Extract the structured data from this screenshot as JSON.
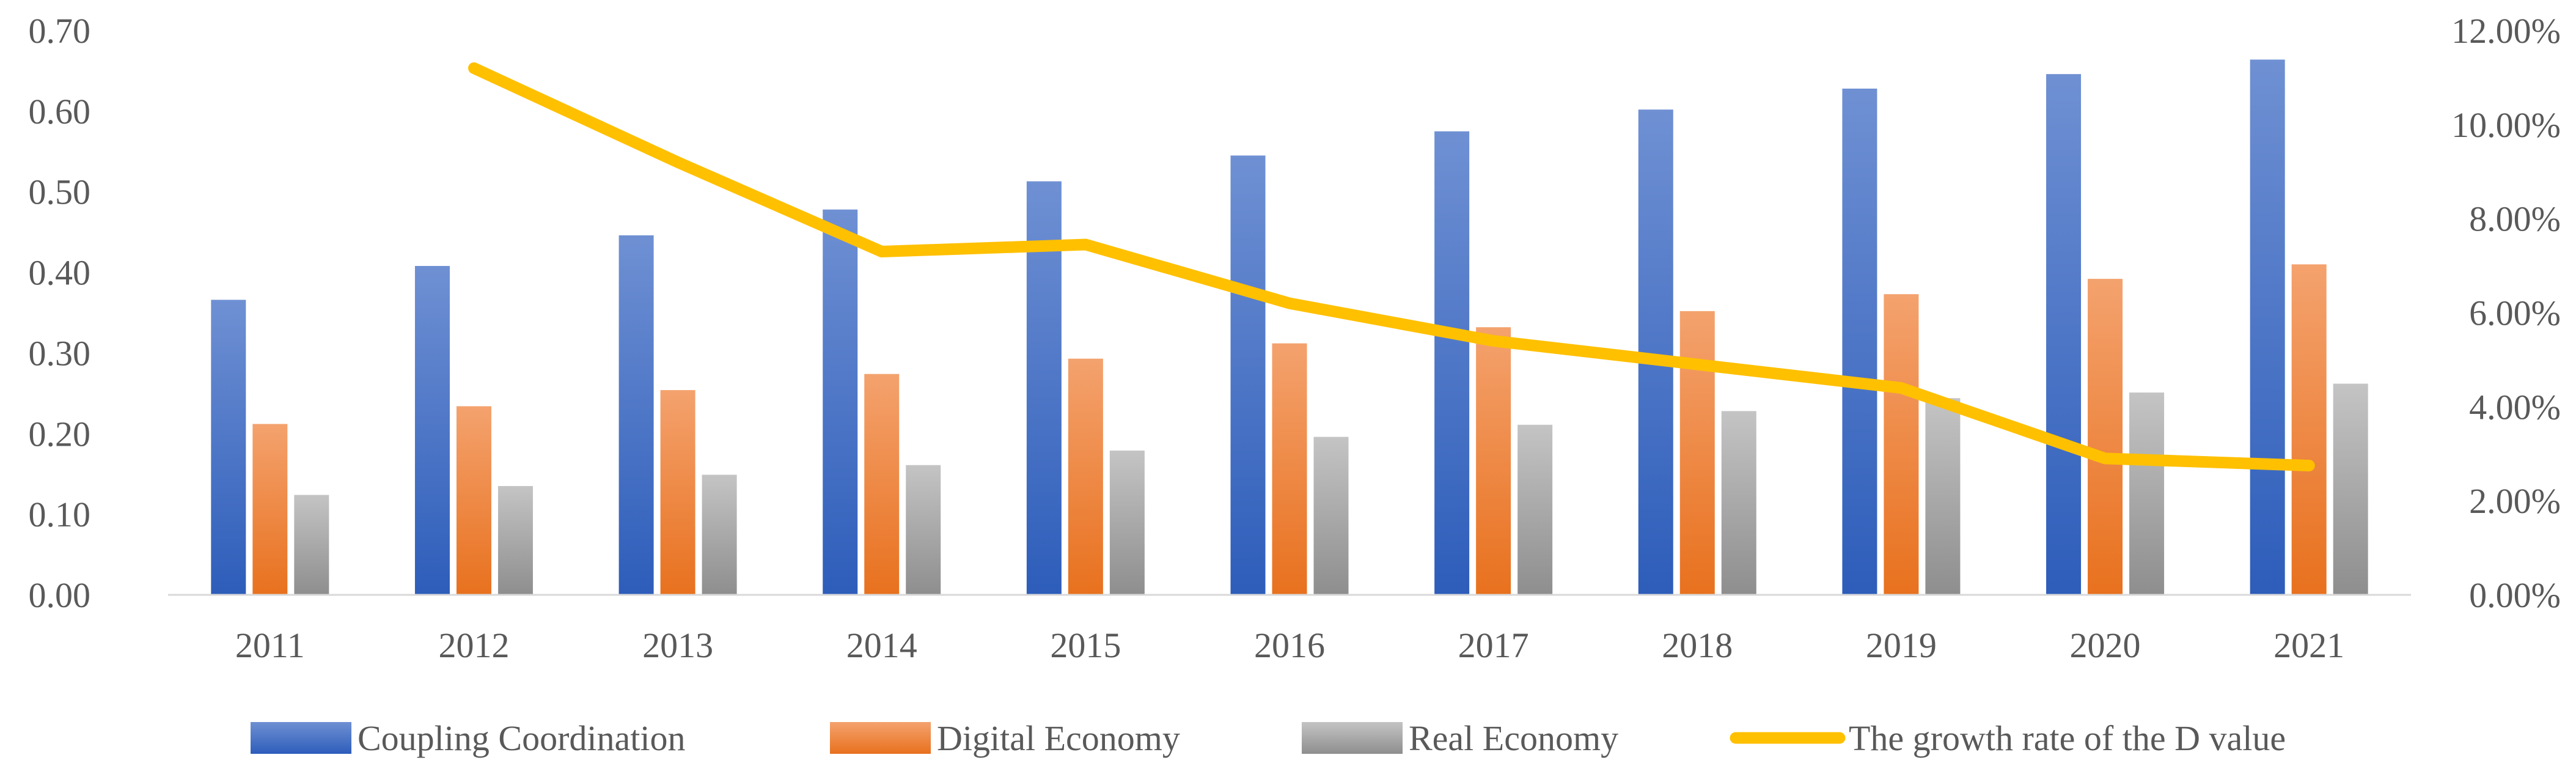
{
  "chart_data": {
    "type": "bar",
    "categories": [
      "2011",
      "2012",
      "2013",
      "2014",
      "2015",
      "2016",
      "2017",
      "2018",
      "2019",
      "2020",
      "2021"
    ],
    "series": [
      {
        "name": "Coupling Coordination",
        "type": "bar",
        "axis": "left",
        "color": "#4472C4",
        "values": [
          0.366,
          0.408,
          0.446,
          0.478,
          0.513,
          0.545,
          0.575,
          0.602,
          0.628,
          0.646,
          0.664
        ]
      },
      {
        "name": "Digital Economy",
        "type": "bar",
        "axis": "left",
        "color": "#ED7D31",
        "values": [
          0.212,
          0.234,
          0.254,
          0.274,
          0.293,
          0.312,
          0.332,
          0.352,
          0.373,
          0.392,
          0.41
        ]
      },
      {
        "name": "Real Economy",
        "type": "bar",
        "axis": "left",
        "color": "#A5A5A5",
        "values": [
          0.124,
          0.135,
          0.149,
          0.161,
          0.179,
          0.196,
          0.211,
          0.228,
          0.244,
          0.251,
          0.262
        ]
      },
      {
        "name": "The growth rate of the D value",
        "type": "line",
        "axis": "right",
        "color": "#FFC000",
        "values": [
          null,
          11.2,
          9.2,
          7.3,
          7.45,
          6.2,
          5.4,
          4.9,
          4.4,
          2.9,
          2.75
        ]
      }
    ],
    "y_left": {
      "min": 0,
      "max": 0.7,
      "ticks": [
        "0.00",
        "0.10",
        "0.20",
        "0.30",
        "0.40",
        "0.50",
        "0.60",
        "0.70"
      ]
    },
    "y_right": {
      "min": 0,
      "max": 12,
      "ticks": [
        "0.00%",
        "2.00%",
        "4.00%",
        "6.00%",
        "8.00%",
        "10.00%",
        "12.00%"
      ]
    },
    "title": "",
    "xlabel": "",
    "ylabel": "",
    "legend_position": "bottom",
    "grid": false
  }
}
